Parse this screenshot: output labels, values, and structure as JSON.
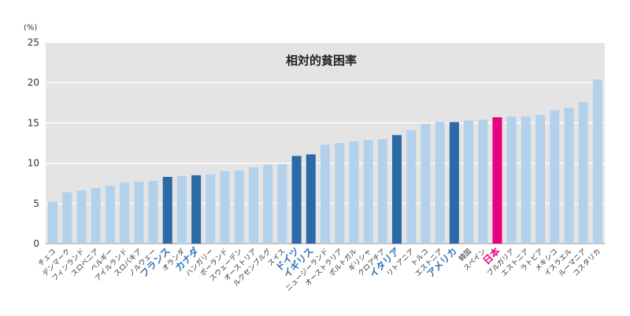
{
  "chart_data": {
    "type": "bar",
    "title": "相対的貧困率",
    "unit": "(%)",
    "ylim": [
      0,
      25
    ],
    "yticks": [
      0,
      5,
      10,
      15,
      20,
      25
    ],
    "grid": true,
    "categories": [
      "チェコ",
      "デンマーク",
      "フィンランド",
      "スロベニア",
      "ベルギー",
      "アイルランド",
      "スロバキア",
      "ノルウェー",
      "フランス",
      "オランダ",
      "カナダ",
      "ハンガリー",
      "ポーランド",
      "スウェーデン",
      "オーストリア",
      "ルクセンブルグ",
      "スイス",
      "ドイツ",
      "イギリス",
      "ニュージーランド",
      "オーストラリア",
      "ポルトガル",
      "ギリシャ",
      "クロアチア",
      "イタリア",
      "リトアニア",
      "トルコ",
      "エストニア",
      "アメリカ",
      "韓国",
      "スペイン",
      "日本",
      "ブルガリア",
      "エストニア",
      "ラトビア",
      "メキシコ",
      "イスラエル",
      "ルーマニア",
      "コスタリカ"
    ],
    "values": [
      5.2,
      6.4,
      6.6,
      6.9,
      7.2,
      7.6,
      7.7,
      7.8,
      8.3,
      8.4,
      8.5,
      8.6,
      9.0,
      9.1,
      9.5,
      9.8,
      9.9,
      10.9,
      11.1,
      12.3,
      12.5,
      12.7,
      12.9,
      13.0,
      13.5,
      14.1,
      14.9,
      15.1,
      15.1,
      15.3,
      15.4,
      15.7,
      15.8,
      15.8,
      16.0,
      16.6,
      16.9,
      17.6,
      20.4
    ],
    "highlight_blue": [
      "フランス",
      "カナダ",
      "ドイツ",
      "イギリス",
      "イタリア",
      "アメリカ"
    ],
    "highlight_red": [
      "日本"
    ],
    "colors": {
      "default": "#b4d1ec",
      "highlight_blue": "#2a6aa6",
      "highlight_red": "#e4007f",
      "plot_bg": "#e4e4e4",
      "grid": "#ffffff",
      "label_blue": "#2e74b5",
      "label_red": "#e4007f"
    }
  }
}
